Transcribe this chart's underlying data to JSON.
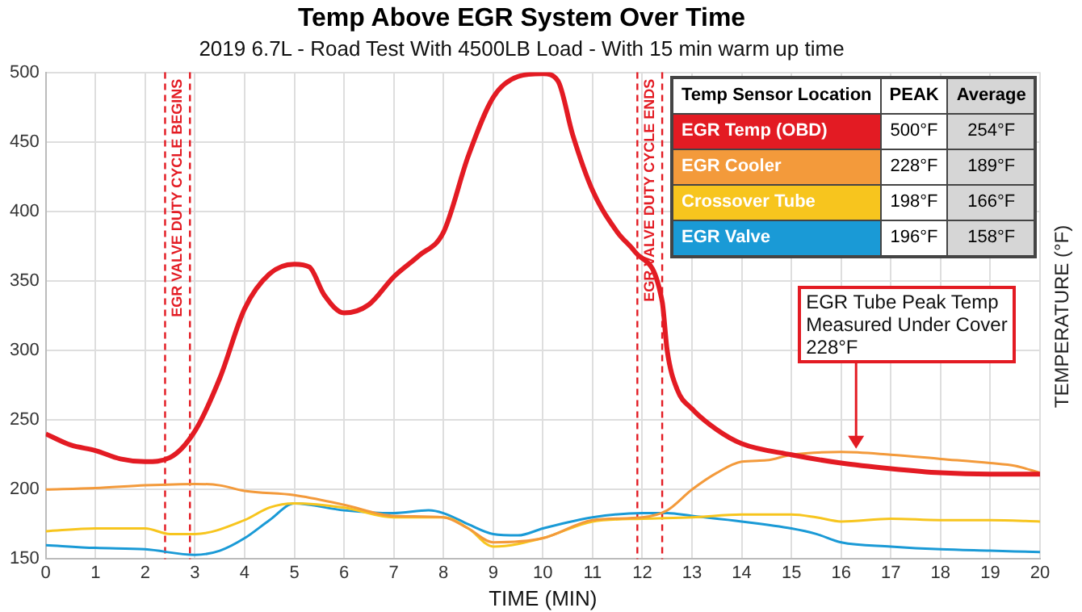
{
  "chart_data": {
    "type": "line",
    "title": "Temp Above EGR System Over Time",
    "subtitle": "2019 6.7L - Road Test With 4500LB Load - With 15 min warm up time",
    "xlabel": "TIME (MIN)",
    "ylabel": "TEMPERATURE (°F)",
    "xlim": [
      0,
      20
    ],
    "xticks": [
      0,
      1,
      2,
      3,
      4,
      5,
      6,
      7,
      8,
      9,
      10,
      11,
      12,
      13,
      14,
      15,
      16,
      17,
      18,
      19,
      20
    ],
    "ylim": [
      150,
      500
    ],
    "yticks": [
      150,
      200,
      250,
      300,
      350,
      400,
      450,
      500
    ],
    "grid": true,
    "legend": "top right",
    "marker": "none",
    "line_style": "solid",
    "series": [
      {
        "name": "EGR Temp (OBD)",
        "color": "#e31b23",
        "x": [
          0,
          0.5,
          1,
          1.5,
          2,
          2.5,
          3,
          3.5,
          4,
          4.5,
          5,
          5.3,
          5.6,
          6,
          6.5,
          7,
          7.5,
          8,
          8.5,
          9,
          9.5,
          10,
          10.3,
          10.6,
          11,
          11.5,
          11.85,
          12.4,
          12.5,
          12.7,
          13,
          13.5,
          14,
          15,
          16,
          17,
          18,
          19,
          20
        ],
        "values": [
          240,
          232,
          228,
          222,
          220,
          223,
          242,
          280,
          330,
          355,
          362,
          360,
          340,
          327,
          333,
          353,
          368,
          385,
          440,
          482,
          497,
          499,
          494,
          455,
          415,
          385,
          371,
          335,
          300,
          272,
          258,
          243,
          233,
          225,
          219,
          215,
          212,
          211,
          211
        ]
      },
      {
        "name": "EGR Cooler",
        "color": "#f39a3b",
        "x": [
          0,
          1,
          2,
          3,
          3.5,
          4,
          5,
          6,
          7,
          8,
          8.5,
          9,
          10,
          11,
          12,
          12.5,
          13,
          13.5,
          14,
          14.5,
          15,
          16,
          17,
          18,
          19,
          19.5,
          20
        ],
        "values": [
          200,
          201,
          203,
          204,
          203,
          199,
          196,
          189,
          181,
          180,
          172,
          162,
          165,
          178,
          180,
          185,
          200,
          212,
          220,
          221,
          225,
          227,
          225,
          222,
          219,
          217,
          212
        ]
      },
      {
        "name": "Crossover Tube",
        "color": "#f7c51e",
        "x": [
          0,
          1,
          2,
          2.5,
          3,
          4,
          4.5,
          5,
          6,
          7,
          8,
          8.5,
          9,
          10,
          11,
          12,
          13,
          14,
          15,
          15.5,
          16,
          17,
          18,
          19,
          20
        ],
        "values": [
          170,
          172,
          172,
          168,
          168,
          178,
          187,
          190,
          187,
          180,
          180,
          172,
          159,
          165,
          177,
          179,
          180,
          182,
          182,
          180,
          177,
          179,
          178,
          178,
          177
        ]
      },
      {
        "name": "EGR Valve",
        "color": "#1a9ad6",
        "x": [
          0,
          1,
          2,
          3,
          3.5,
          4,
          4.5,
          5,
          6,
          7,
          7.7,
          8,
          8.5,
          9,
          9.5,
          10,
          11,
          12,
          12.5,
          13,
          14,
          15,
          15.5,
          16,
          17,
          18,
          19,
          20
        ],
        "values": [
          160,
          158,
          157,
          153,
          156,
          165,
          178,
          190,
          185,
          183,
          185,
          183,
          175,
          168,
          167,
          172,
          180,
          183,
          183,
          181,
          177,
          172,
          168,
          162,
          159,
          157,
          156,
          155
        ]
      }
    ],
    "ref_lines": [
      {
        "axis": "x",
        "value": 2.4,
        "label": "EGR VALVE DUTY CYCLE BEGINS",
        "color": "#e31b23",
        "line_style": "dashed"
      },
      {
        "axis": "x",
        "value": 2.9,
        "label": null,
        "color": "#e31b23",
        "line_style": "dashed"
      },
      {
        "axis": "x",
        "value": 11.9,
        "label": "EGR VALVE DUTY CYCLE ENDS",
        "color": "#e31b23",
        "line_style": "dashed"
      },
      {
        "axis": "x",
        "value": 12.4,
        "label": null,
        "color": "#e31b23",
        "line_style": "dashed"
      }
    ],
    "annotations": [
      "Temp Sensor Location",
      "PEAK",
      "Average",
      "500°F",
      "254°F",
      "228°F",
      "189°F",
      "198°F",
      "166°F",
      "196°F",
      "158°F",
      {
        "text": "EGR Tube Peak Temp\nMeasured Under Cover\n228°F",
        "x": 16.3,
        "y": 227
      }
    ]
  }
}
